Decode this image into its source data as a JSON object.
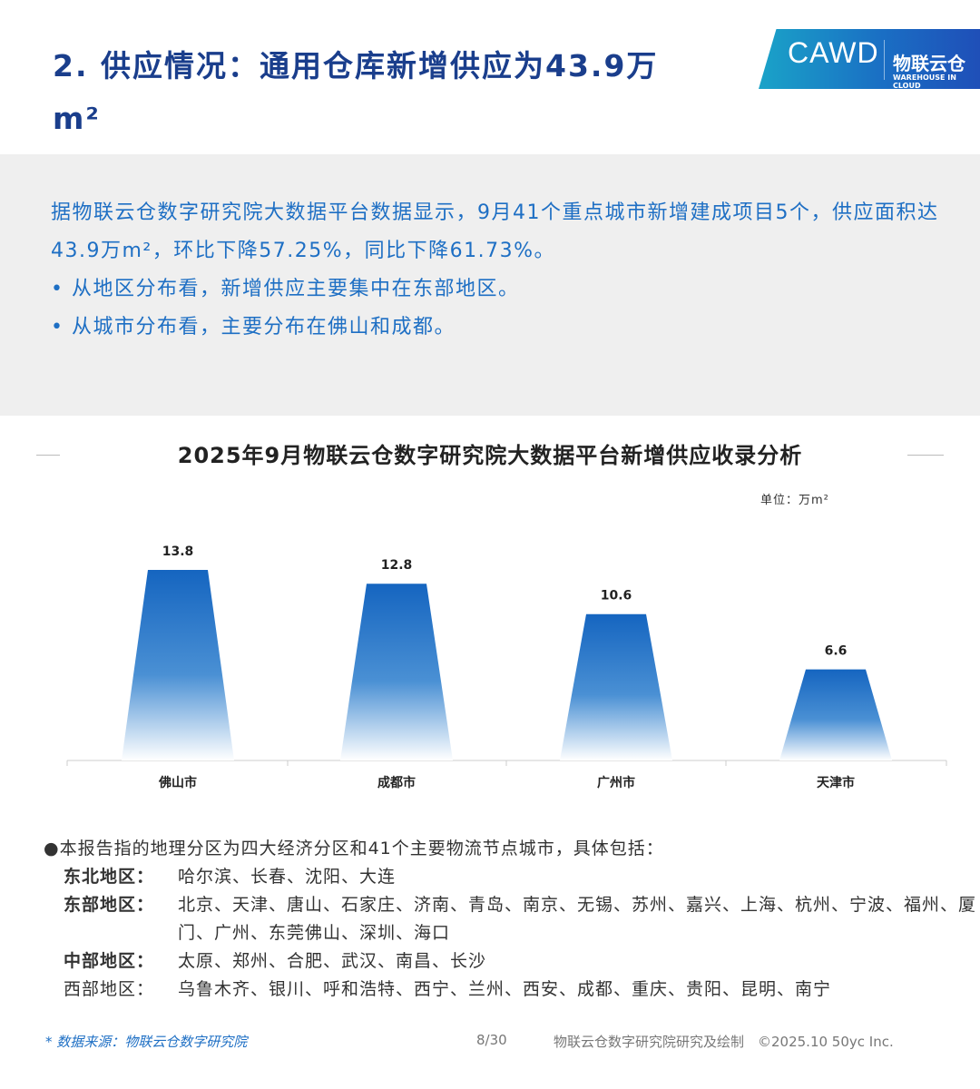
{
  "header": {
    "title": "2. 供应情况：通用仓库新增供应为43.9万m²",
    "logo_text": "CAWD",
    "logo_brand": "物联云仓",
    "logo_sub": "WAREHOUSE IN CLOUD"
  },
  "summary": {
    "lines": [
      "据物联云仓数字研究院大数据平台数据显示，9月41个重点城市新增建成项目5个，供应面积达43.9万m²，环比下降57.25%，同比下降61.73%。",
      "• 从地区分布看，新增供应主要集中在东部地区。",
      "• 从城市分布看，主要分布在佛山和成都。"
    ]
  },
  "chart_data": {
    "type": "bar",
    "title": "2025年9月物联云仓数字研究院大数据平台新增供应收录分析",
    "unit": "单位：万m²",
    "categories": [
      "佛山市",
      "成都市",
      "广州市",
      "天津市"
    ],
    "values": [
      13.8,
      12.8,
      10.6,
      6.6
    ],
    "value_labels": [
      "13.8",
      "12.8",
      "10.6",
      "6.6"
    ],
    "ylim": [
      0,
      14
    ],
    "grid": false,
    "color": "#1565c0"
  },
  "notes": {
    "intro": "●本报告指的地理分区为四大经济分区和41个主要物流节点城市，具体包括：",
    "regions": [
      {
        "label": "东北地区：",
        "cities": "哈尔滨、长春、沈阳、大连"
      },
      {
        "label": "东部地区：",
        "cities": "北京、天津、唐山、石家庄、济南、青岛、南京、无锡、苏州、嘉兴、上海、杭州、宁波、福州、厦门、广州、东莞佛山、深圳、海口"
      },
      {
        "label": "中部地区：",
        "cities": "太原、郑州、合肥、武汉、南昌、长沙"
      },
      {
        "label": "西部地区：",
        "cities": "乌鲁木齐、银川、呼和浩特、西宁、兰州、西安、成都、重庆、贵阳、昆明、南宁"
      }
    ]
  },
  "footer": {
    "source": "* 数据来源：物联云仓数字研究院",
    "page": "8/30",
    "credit": "物联云仓数字研究院研究及绘制　©2025.10 50yc Inc."
  }
}
